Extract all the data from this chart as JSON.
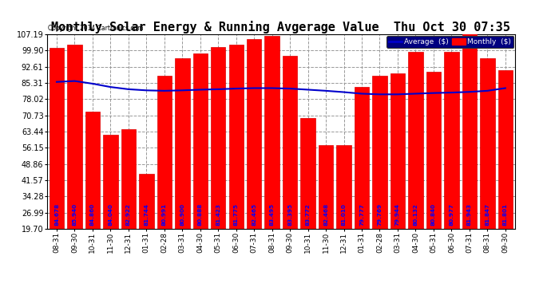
{
  "title": "Monthly Solar Energy & Running Avgerage Value  Thu Oct 30 07:35",
  "copyright": "Copyright 2014 Cartronics.com",
  "categories": [
    "08-31",
    "09-30",
    "10-31",
    "11-30",
    "12-31",
    "01-31",
    "02-28",
    "03-31",
    "04-30",
    "05-31",
    "06-30",
    "07-31",
    "08-31",
    "09-30",
    "10-31",
    "11-30",
    "12-31",
    "01-31",
    "02-28",
    "03-31",
    "04-30",
    "05-31",
    "06-30",
    "07-31",
    "08-31",
    "09-30"
  ],
  "bar_values": [
    101.0,
    102.5,
    72.5,
    62.0,
    64.5,
    44.5,
    88.5,
    96.5,
    98.5,
    101.5,
    102.5,
    105.0,
    106.5,
    97.5,
    69.5,
    57.5,
    57.5,
    83.5,
    88.5,
    89.5,
    99.5,
    90.5,
    99.5,
    107.5,
    96.5,
    91.0
  ],
  "bar_labels": [
    "84.678",
    "85.940",
    "84.860",
    "84.040",
    "82.922",
    "81.744",
    "80.991",
    "80.900",
    "80.888",
    "81.423",
    "81.775",
    "82.465",
    "83.495",
    "83.395",
    "83.772",
    "82.468",
    "81.010",
    "79.777",
    "79.769",
    "79.944",
    "80.132",
    "80.840",
    "80.977",
    "81.943",
    "81.847",
    "81.801"
  ],
  "avg_values": [
    85.8,
    86.2,
    85.0,
    83.5,
    82.5,
    82.0,
    81.8,
    82.0,
    82.3,
    82.5,
    82.8,
    83.0,
    83.0,
    82.8,
    82.3,
    81.8,
    81.2,
    80.5,
    80.2,
    80.2,
    80.5,
    80.8,
    81.0,
    81.3,
    81.8,
    83.0
  ],
  "bar_color": "#ff0000",
  "bar_edge_color": "#dd0000",
  "avg_line_color": "#0000cc",
  "label_color": "#0000ff",
  "bg_color": "#ffffff",
  "grid_color": "#999999",
  "yticks": [
    19.7,
    26.99,
    34.28,
    41.57,
    48.86,
    56.15,
    63.44,
    70.73,
    78.02,
    85.31,
    92.61,
    99.9,
    107.19
  ],
  "ylim_min": 19.7,
  "ylim_max": 107.19,
  "title_fontsize": 11,
  "legend_labels": [
    "Average  ($)",
    "Monthly  ($)"
  ]
}
